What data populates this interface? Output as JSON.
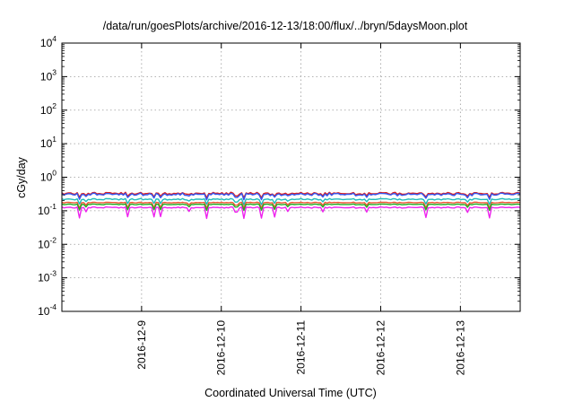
{
  "chart_data": {
    "type": "line",
    "title": "/data/run/goesPlots/archive/2016-12-13/18:00/flux/../bryn/5daysMoon.plot",
    "xlabel": "Coordinated Universal Time (UTC)",
    "ylabel": "cGy/day",
    "yscale": "log",
    "ylim": [
      0.0001,
      10000
    ],
    "y_tick_labels": [
      {
        "value": 0.0001,
        "base": "10",
        "exp": "-4"
      },
      {
        "value": 0.001,
        "base": "10",
        "exp": "-3"
      },
      {
        "value": 0.01,
        "base": "10",
        "exp": "-2"
      },
      {
        "value": 0.1,
        "base": "10",
        "exp": "-1"
      },
      {
        "value": 1,
        "base": "10",
        "exp": "0"
      },
      {
        "value": 10,
        "base": "10",
        "exp": "1"
      },
      {
        "value": 100,
        "base": "10",
        "exp": "2"
      },
      {
        "value": 1000,
        "base": "10",
        "exp": "3"
      },
      {
        "value": 10000,
        "base": "10",
        "exp": "4"
      }
    ],
    "xlim": [
      "2016-12-08T00:00",
      "2016-12-13T18:00"
    ],
    "x_ticks": [
      {
        "x": "2016-12-09T00:00",
        "label": "2016-12-9"
      },
      {
        "x": "2016-12-10T00:00",
        "label": "2016-12-10"
      },
      {
        "x": "2016-12-11T00:00",
        "label": "2016-12-11"
      },
      {
        "x": "2016-12-12T00:00",
        "label": "2016-12-12"
      },
      {
        "x": "2016-12-13T00:00",
        "label": "2016-12-13"
      }
    ],
    "grid": true,
    "legend": "none",
    "series": [
      {
        "color": "#dd2222",
        "level": 0.33,
        "spread": 0.08,
        "dips": 0.1
      },
      {
        "color": "#3355ee",
        "level": 0.31,
        "spread": 0.09,
        "dips": 0.13
      },
      {
        "color": "#22bbbb",
        "level": 0.22,
        "spread": 0.05,
        "dips": 0.14
      },
      {
        "color": "#ee5533",
        "level": 0.175,
        "spread": 0.03,
        "dips": 0.16
      },
      {
        "color": "#22aa22",
        "level": 0.155,
        "spread": 0.03,
        "dips": 0.17
      },
      {
        "color": "#ee22ee",
        "level": 0.125,
        "spread": 0.04,
        "dips": 0.3
      }
    ]
  }
}
